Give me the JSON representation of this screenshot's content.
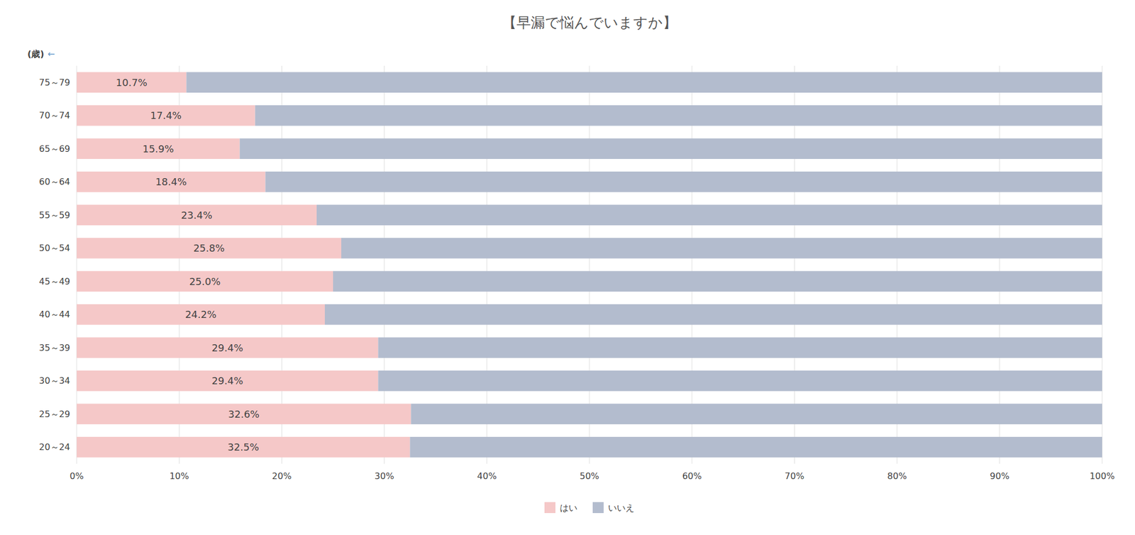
{
  "chart_data": {
    "type": "bar",
    "orientation": "horizontal",
    "stacked": true,
    "title": "【早漏で悩んでいますか】",
    "ylabel": "(歳)",
    "annotations": [
      {
        "text": "←",
        "color": "#6699cc"
      }
    ],
    "categories": [
      "75～79",
      "70～74",
      "65～69",
      "60～64",
      "55～59",
      "50～54",
      "45～49",
      "40～44",
      "35～39",
      "30～34",
      "25～29",
      "20～24"
    ],
    "series": [
      {
        "name": "はい",
        "color": "#f5c8c8",
        "data_labels": true,
        "values": [
          10.7,
          17.4,
          15.9,
          18.4,
          23.4,
          25.8,
          25.0,
          24.2,
          29.4,
          29.4,
          32.6,
          32.5
        ],
        "value_labels": [
          "10.7%",
          "17.4%",
          "15.9%",
          "18.4%",
          "23.4%",
          "25.8%",
          "25.0%",
          "24.2%",
          "29.4%",
          "29.4%",
          "32.6%",
          "32.5%"
        ]
      },
      {
        "name": "いいえ",
        "color": "#b3bcce",
        "values": [
          89.3,
          82.6,
          84.1,
          81.6,
          76.6,
          74.2,
          75.0,
          75.8,
          70.6,
          70.6,
          67.4,
          67.5
        ]
      }
    ],
    "xlim": [
      0,
      100
    ],
    "xticks": [
      {
        "value": 0,
        "label": "0%"
      },
      {
        "value": 10,
        "label": "10%"
      },
      {
        "value": 20,
        "label": "20%"
      },
      {
        "value": 30,
        "label": "30%"
      },
      {
        "value": 40,
        "label": "40%"
      },
      {
        "value": 50,
        "label": "50%"
      },
      {
        "value": 60,
        "label": "60%"
      },
      {
        "value": 70,
        "label": "70%"
      },
      {
        "value": 80,
        "label": "80%"
      },
      {
        "value": 90,
        "label": "90%"
      },
      {
        "value": 100,
        "label": "100%"
      }
    ],
    "grid": true,
    "legend": "bottom"
  }
}
